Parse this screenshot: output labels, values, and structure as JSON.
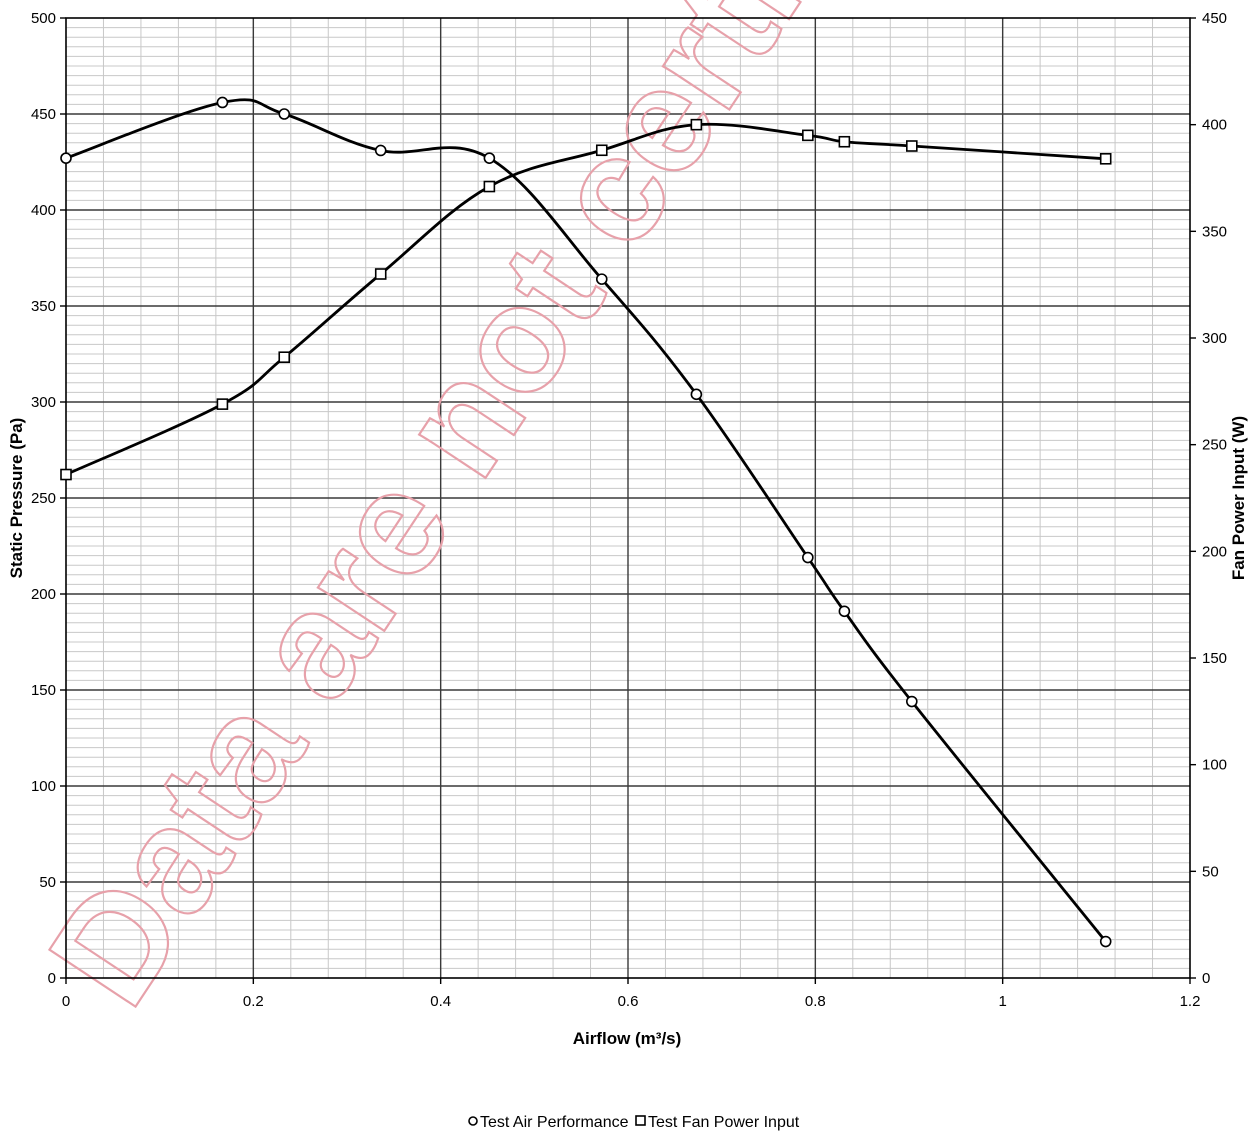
{
  "chart_data": {
    "type": "line",
    "xlabel": "Airflow (m³/s)",
    "ylabel": "Static Pressure (Pa)",
    "y2label": "Fan Power Input (W)",
    "xlim": [
      0,
      1.2
    ],
    "ylim": [
      0,
      500
    ],
    "y2lim": [
      0,
      450
    ],
    "x_ticks": [
      "0",
      "0.2",
      "0.4",
      "0.6",
      "0.8",
      "1",
      "1.2"
    ],
    "y_ticks": [
      "0",
      "50",
      "100",
      "150",
      "200",
      "250",
      "300",
      "350",
      "400",
      "450",
      "500"
    ],
    "y2_ticks": [
      "0",
      "50",
      "100",
      "150",
      "200",
      "250",
      "300",
      "350",
      "400",
      "450"
    ],
    "grid": true,
    "legend_position": "bottom-center",
    "watermark": "Data are not certified by",
    "series": [
      {
        "name": "Test Air Performance",
        "axis": "left",
        "marker": "circle",
        "color": "#000000",
        "x": [
          0,
          0.167,
          0.233,
          0.336,
          0.452,
          0.572,
          0.673,
          0.792,
          0.831,
          0.903,
          1.11
        ],
        "y": [
          427,
          456,
          450,
          431,
          427,
          364,
          304,
          219,
          191,
          144,
          19
        ]
      },
      {
        "name": "Test Fan Power Input",
        "axis": "right",
        "marker": "square",
        "color": "#000000",
        "x": [
          0,
          0.167,
          0.233,
          0.336,
          0.452,
          0.572,
          0.673,
          0.792,
          0.831,
          0.903,
          1.11
        ],
        "y": [
          236,
          269,
          291,
          330,
          371,
          388,
          400,
          395,
          392,
          390,
          384
        ]
      }
    ]
  }
}
